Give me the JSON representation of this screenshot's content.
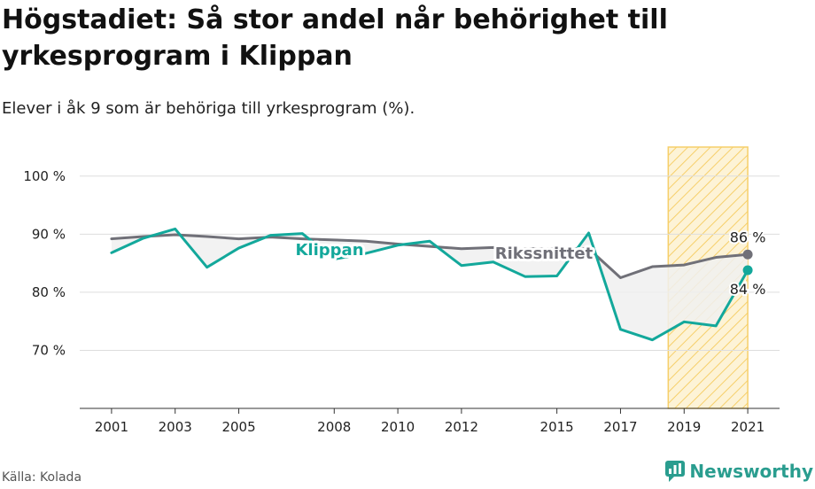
{
  "title": "Högstadiet: Så stor andel når behörighet till yrkesprogram i Klippan",
  "subtitle": "Elever i åk 9 som är behöriga till yrkesprogram (%).",
  "source": "Källa: Kolada",
  "brand": "Newsworthy",
  "colors": {
    "klippan": "#13a89b",
    "riks": "#707078",
    "highlight": "#f6cf6a",
    "grid": "#dddddd",
    "fill": "#f0f0f0"
  },
  "chart_data": {
    "type": "line",
    "ylim": [
      60,
      105
    ],
    "xlim": [
      2000,
      2022
    ],
    "y_ticks": [
      {
        "value": 70,
        "label": "70 %"
      },
      {
        "value": 80,
        "label": "80 %"
      },
      {
        "value": 90,
        "label": "90 %"
      },
      {
        "value": 100,
        "label": "100 %"
      }
    ],
    "x_ticks": [
      {
        "value": 2001,
        "label": "2001"
      },
      {
        "value": 2003,
        "label": "2003"
      },
      {
        "value": 2005,
        "label": "2005"
      },
      {
        "value": 2008,
        "label": "2008"
      },
      {
        "value": 2010,
        "label": "2010"
      },
      {
        "value": 2012,
        "label": "2012"
      },
      {
        "value": 2015,
        "label": "2015"
      },
      {
        "value": 2017,
        "label": "2017"
      },
      {
        "value": 2019,
        "label": "2019"
      },
      {
        "value": 2021,
        "label": "2021"
      }
    ],
    "highlight_range": [
      2018.5,
      2021
    ],
    "grid": true,
    "series": [
      {
        "name": "Rikssnittet",
        "x": [
          2001,
          2002,
          2003,
          2004,
          2005,
          2006,
          2007,
          2008,
          2009,
          2010,
          2011,
          2012,
          2013,
          2014,
          2015,
          2016,
          2017,
          2018,
          2019,
          2020,
          2021
        ],
        "y": [
          89.2,
          89.6,
          89.9,
          89.6,
          89.2,
          89.5,
          89.2,
          89.0,
          88.8,
          88.3,
          87.9,
          87.5,
          87.7,
          87.5,
          87.5,
          87.5,
          82.5,
          84.4,
          84.7,
          86.0,
          86.5
        ],
        "end_label": "86 %"
      },
      {
        "name": "Klippan",
        "x": [
          2001,
          2002,
          2003,
          2004,
          2005,
          2006,
          2007,
          2008,
          2009,
          2010,
          2011,
          2012,
          2013,
          2014,
          2015,
          2016,
          2017,
          2018,
          2019,
          2020,
          2021
        ],
        "y": [
          86.8,
          89.3,
          90.9,
          84.3,
          87.6,
          89.8,
          90.1,
          85.7,
          86.7,
          88.1,
          88.8,
          84.6,
          85.2,
          82.7,
          82.8,
          90.2,
          73.6,
          71.8,
          74.9,
          74.2,
          83.8
        ],
        "end_label": "84 %"
      }
    ]
  }
}
